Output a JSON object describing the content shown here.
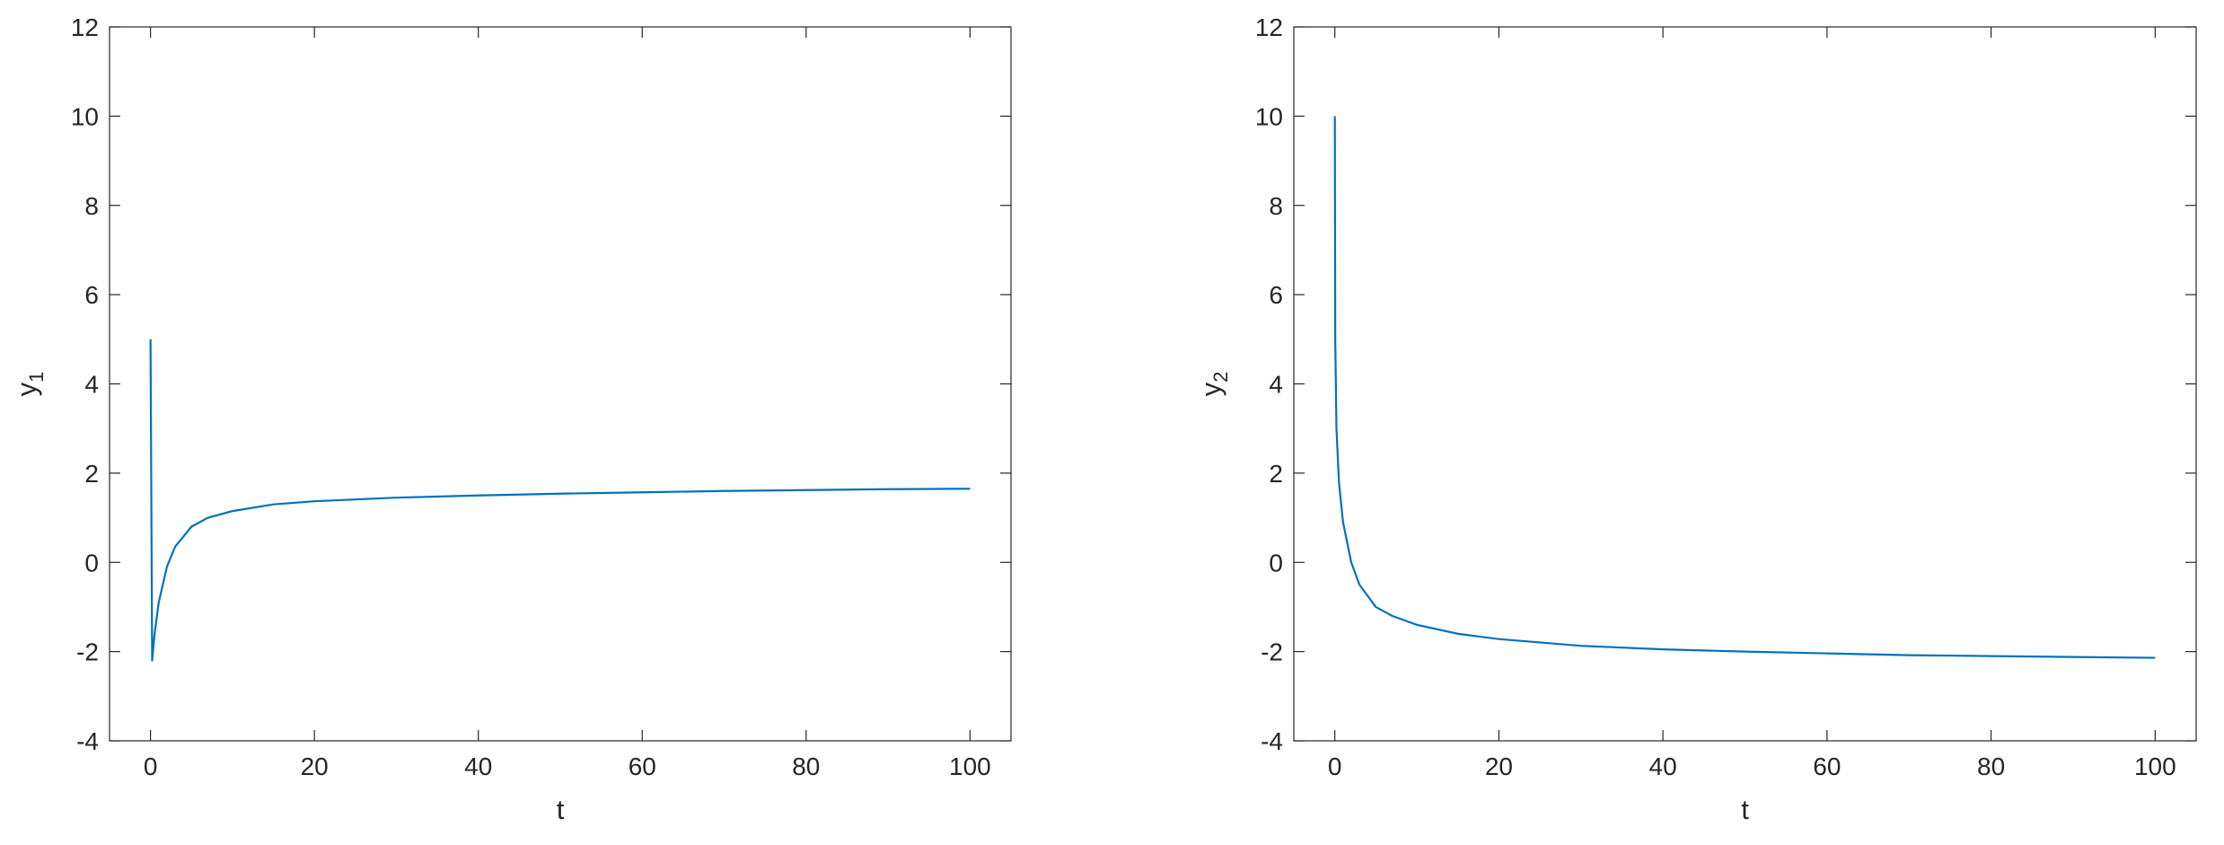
{
  "chart_data": [
    {
      "type": "line",
      "xlabel": "t",
      "ylabel": "y",
      "ylabel_subscript": "1",
      "x": [
        0,
        0.2,
        0.5,
        1,
        2,
        3,
        5,
        7,
        10,
        15,
        20,
        30,
        40,
        50,
        60,
        70,
        80,
        90,
        100
      ],
      "series": [
        {
          "name": "y1",
          "color": "#0072bd",
          "values": [
            5,
            -2.2,
            -1.6,
            -0.9,
            -0.1,
            0.35,
            0.8,
            1.0,
            1.15,
            1.3,
            1.37,
            1.45,
            1.5,
            1.54,
            1.57,
            1.6,
            1.62,
            1.64,
            1.65
          ]
        }
      ],
      "xlim": [
        -5,
        105
      ],
      "ylim": [
        -4,
        12
      ],
      "xticks": [
        0,
        20,
        40,
        60,
        80,
        100
      ],
      "yticks": [
        -4,
        -2,
        0,
        2,
        4,
        6,
        8,
        10,
        12
      ]
    },
    {
      "type": "line",
      "xlabel": "t",
      "ylabel": "y",
      "ylabel_subscript": "2",
      "x": [
        0,
        0.05,
        0.2,
        0.5,
        1,
        2,
        3,
        5,
        7,
        10,
        15,
        20,
        30,
        40,
        50,
        60,
        70,
        80,
        90,
        100
      ],
      "series": [
        {
          "name": "y2",
          "color": "#0072bd",
          "values": [
            10,
            5,
            3,
            1.8,
            0.9,
            0,
            -0.5,
            -1.0,
            -1.2,
            -1.4,
            -1.6,
            -1.72,
            -1.87,
            -1.95,
            -2.0,
            -2.04,
            -2.08,
            -2.1,
            -2.12,
            -2.14
          ]
        }
      ],
      "xlim": [
        -5,
        105
      ],
      "ylim": [
        -4,
        12
      ],
      "xticks": [
        0,
        20,
        40,
        60,
        80,
        100
      ],
      "yticks": [
        -4,
        -2,
        0,
        2,
        4,
        6,
        8,
        10,
        12
      ]
    }
  ]
}
